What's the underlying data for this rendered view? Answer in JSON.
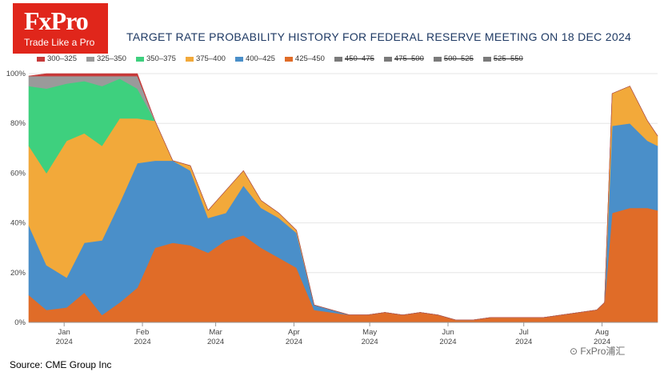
{
  "logo": {
    "brand": "FxPro",
    "tagline": "Trade Like a Pro"
  },
  "title": "TARGET RATE PROBABILITY HISTORY FOR FEDERAL RESERVE MEETING ON 18 DEC 2024",
  "source": "Source: CME Group Inc",
  "watermark": "FxPro浦汇",
  "legend": [
    {
      "label": "300–325",
      "color": "#c73a3a",
      "hidden": false
    },
    {
      "label": "325–350",
      "color": "#9a9a9a",
      "hidden": false
    },
    {
      "label": "350–375",
      "color": "#3ed07e",
      "hidden": false
    },
    {
      "label": "375–400",
      "color": "#f2a93a",
      "hidden": false
    },
    {
      "label": "400–425",
      "color": "#4a8fc9",
      "hidden": false
    },
    {
      "label": "425–450",
      "color": "#e06c28",
      "hidden": false
    },
    {
      "label": "450–475",
      "color": "#7a7a7a",
      "hidden": true
    },
    {
      "label": "475–500",
      "color": "#7a7a7a",
      "hidden": true
    },
    {
      "label": "500–525",
      "color": "#7a7a7a",
      "hidden": true
    },
    {
      "label": "525–550",
      "color": "#7a7a7a",
      "hidden": true
    }
  ],
  "chart_data": {
    "type": "area",
    "stacked": true,
    "y_unit": "%",
    "ylim": [
      0,
      100
    ],
    "y_ticks": [
      "0%",
      "20%",
      "40%",
      "60%",
      "80%",
      "100%"
    ],
    "x_range": [
      "2023-12-18",
      "2024-08-23"
    ],
    "x_ticks": [
      {
        "date": "2024-01-01",
        "label": "Jan",
        "year": "2024"
      },
      {
        "date": "2024-02-01",
        "label": "Feb",
        "year": "2024"
      },
      {
        "date": "2024-03-01",
        "label": "Mar",
        "year": "2024"
      },
      {
        "date": "2024-04-01",
        "label": "Apr",
        "year": "2024"
      },
      {
        "date": "2024-05-01",
        "label": "May",
        "year": "2024"
      },
      {
        "date": "2024-06-01",
        "label": "Jun",
        "year": "2024"
      },
      {
        "date": "2024-07-01",
        "label": "Jul",
        "year": "2024"
      },
      {
        "date": "2024-08-01",
        "label": "Aug",
        "year": "2024"
      }
    ],
    "grid": true,
    "legend_position": "top",
    "x": [
      "2023-12-18",
      "2023-12-25",
      "2024-01-02",
      "2024-01-09",
      "2024-01-16",
      "2024-01-23",
      "2024-01-30",
      "2024-02-06",
      "2024-02-13",
      "2024-02-20",
      "2024-02-27",
      "2024-03-05",
      "2024-03-12",
      "2024-03-19",
      "2024-03-26",
      "2024-04-02",
      "2024-04-09",
      "2024-04-16",
      "2024-04-23",
      "2024-04-30",
      "2024-05-07",
      "2024-05-14",
      "2024-05-21",
      "2024-05-28",
      "2024-06-04",
      "2024-06-11",
      "2024-06-18",
      "2024-06-25",
      "2024-07-02",
      "2024-07-09",
      "2024-07-16",
      "2024-07-23",
      "2024-07-30",
      "2024-08-02",
      "2024-08-05",
      "2024-08-12",
      "2024-08-19",
      "2024-08-23"
    ],
    "series": [
      {
        "name": "425–450",
        "color": "#e06c28",
        "values": [
          11,
          5,
          6,
          12,
          3,
          8,
          14,
          30,
          32,
          31,
          28,
          33,
          35,
          30,
          26,
          22,
          5,
          4,
          3,
          3,
          4,
          3,
          4,
          3,
          1,
          1,
          2,
          2,
          2,
          2,
          3,
          4,
          5,
          8,
          44,
          46,
          46,
          45
        ]
      },
      {
        "name": "400–425",
        "color": "#4a8fc9",
        "values": [
          28,
          18,
          12,
          20,
          30,
          40,
          50,
          35,
          33,
          30,
          14,
          11,
          20,
          16,
          16,
          14,
          2,
          1,
          0,
          0,
          0,
          0,
          0,
          0,
          0,
          0,
          0,
          0,
          0,
          0,
          0,
          0,
          0,
          0,
          35,
          34,
          27,
          26
        ]
      },
      {
        "name": "375–400",
        "color": "#f2a93a",
        "values": [
          32,
          37,
          55,
          44,
          38,
          34,
          18,
          16,
          0,
          2,
          3,
          9,
          6,
          3,
          2,
          1,
          0,
          0,
          0,
          0,
          0,
          0,
          0,
          0,
          0,
          0,
          0,
          0,
          0,
          0,
          0,
          0,
          0,
          0,
          13,
          15,
          8,
          4
        ]
      },
      {
        "name": "350–375",
        "color": "#3ed07e",
        "values": [
          24,
          34,
          23,
          21,
          24,
          16,
          12,
          0,
          0,
          0,
          0,
          0,
          0,
          0,
          0,
          0,
          0,
          0,
          0,
          0,
          0,
          0,
          0,
          0,
          0,
          0,
          0,
          0,
          0,
          0,
          0,
          0,
          0,
          0,
          0,
          0,
          0,
          0
        ]
      },
      {
        "name": "325–350",
        "color": "#9a9a9a",
        "values": [
          4,
          5,
          3,
          2,
          4,
          1,
          5,
          0,
          0,
          0,
          0,
          0,
          0,
          0,
          0,
          0,
          0,
          0,
          0,
          0,
          0,
          0,
          0,
          0,
          0,
          0,
          0,
          0,
          0,
          0,
          0,
          0,
          0,
          0,
          0,
          0,
          0,
          0
        ]
      },
      {
        "name": "300–325",
        "color": "#c73a3a",
        "values": [
          0,
          1,
          1,
          1,
          1,
          1,
          1,
          0,
          0,
          0,
          0,
          0,
          0,
          0,
          0,
          0,
          0,
          0,
          0,
          0,
          0,
          0,
          0,
          0,
          0,
          0,
          0,
          0,
          0,
          0,
          0,
          0,
          0,
          0,
          0,
          0,
          0,
          0
        ]
      }
    ]
  }
}
